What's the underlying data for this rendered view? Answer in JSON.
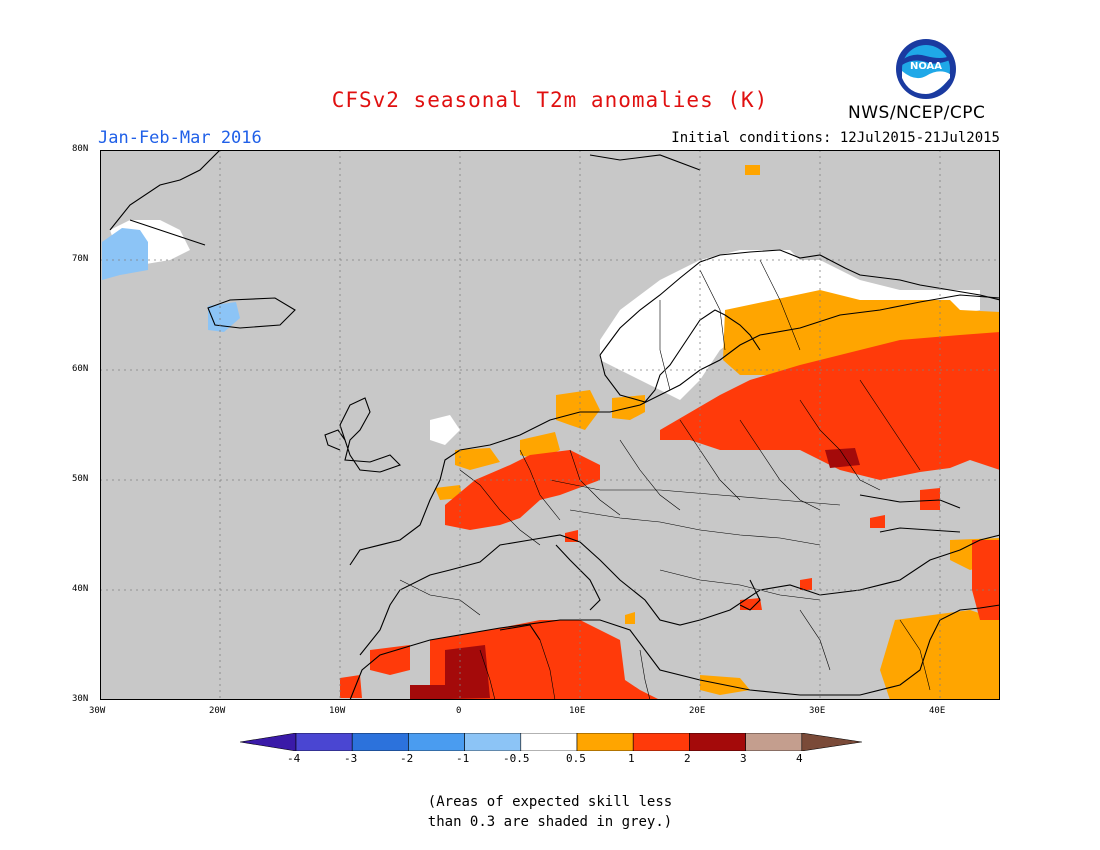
{
  "title": "CFSv2 seasonal T2m anomalies (K)",
  "period": "Jan-Feb-Mar 2016",
  "initial_conditions": "Initial conditions: 12Jul2015-21Jul2015",
  "agency": "NWS/NCEP/CPC",
  "logo_text": "NOAA",
  "lat_labels": [
    "30N",
    "40N",
    "50N",
    "60N",
    "70N",
    "80N"
  ],
  "lon_labels": [
    "30W",
    "20W",
    "10W",
    "0",
    "10E",
    "20E",
    "30E",
    "40E"
  ],
  "colorbar": {
    "labels": [
      "-4",
      "-3",
      "-2",
      "-1",
      "-0.5",
      "0.5",
      "1",
      "2",
      "3",
      "4"
    ],
    "colors": [
      "#3a1aa8",
      "#4a46d2",
      "#2c72dc",
      "#4a9cf0",
      "#8cc4f6",
      "#ffffff",
      "#ffa500",
      "#ff3a0a",
      "#a40a0a",
      "#c49e8e",
      "#7a4a38"
    ]
  },
  "note_line1": "(Areas of expected skill less",
  "note_line2": "than 0.3 are shaded in grey.)",
  "colors": {
    "title": "#e01010",
    "period": "#2060e8",
    "grey": "#c8c8c8"
  }
}
